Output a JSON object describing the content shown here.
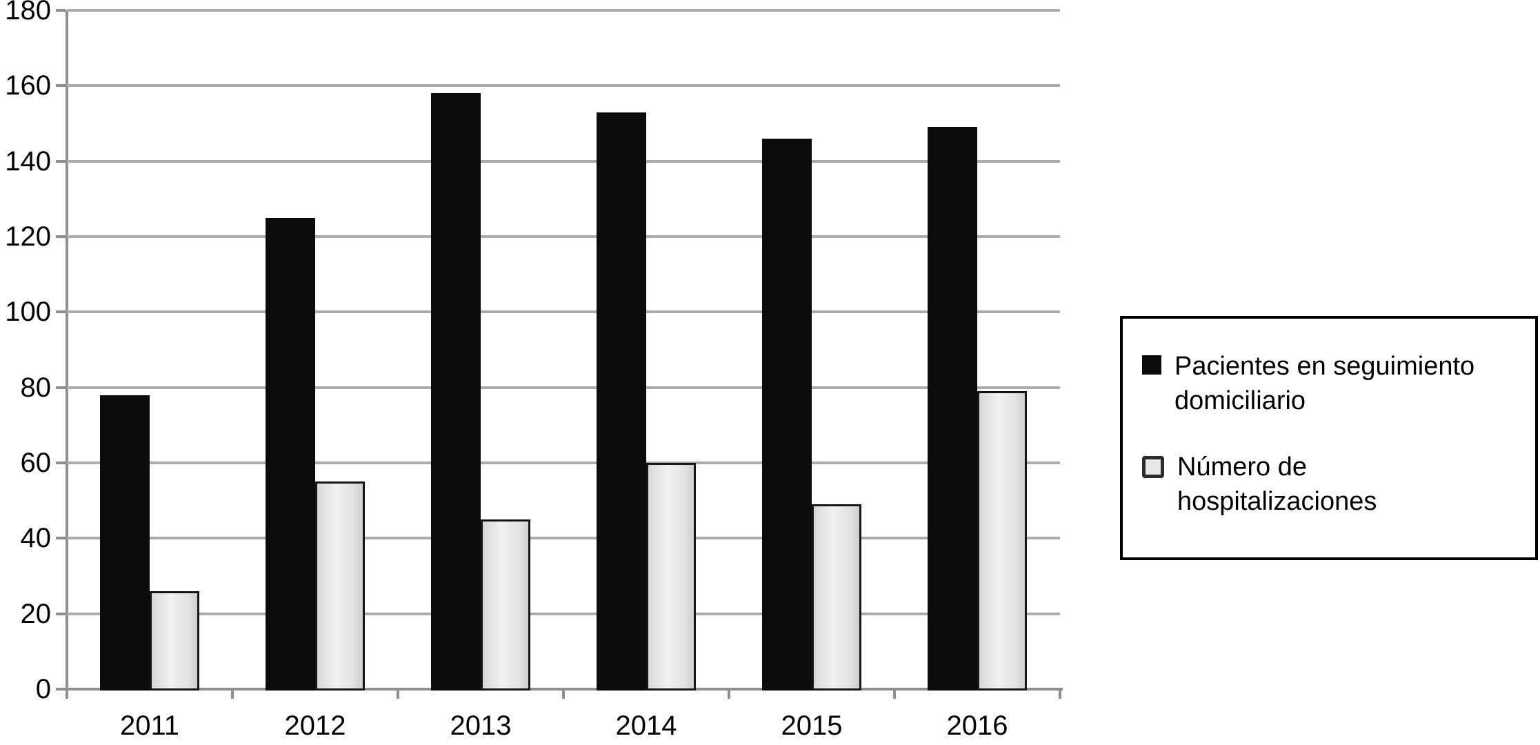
{
  "figure": {
    "background": "#ffffff"
  },
  "chart_data": {
    "type": "bar",
    "categories": [
      "2011",
      "2012",
      "2013",
      "2014",
      "2015",
      "2016"
    ],
    "series": [
      {
        "name": "Pacientes en seguimiento domiciliario",
        "color": "#0b0b0b",
        "values": [
          78,
          125,
          158,
          153,
          146,
          149
        ]
      },
      {
        "name": "Número de hospitalizaciones",
        "color": "#e4e4e4",
        "values": [
          26,
          55,
          45,
          60,
          49,
          79
        ]
      }
    ],
    "title": "",
    "xlabel": "",
    "ylabel": "",
    "ylim": [
      0,
      180
    ],
    "ytick_step": 20,
    "grid": "horizontal",
    "legend_position": "right"
  },
  "y_axis": {
    "tick_labels": [
      "0",
      "20",
      "40",
      "60",
      "80",
      "100",
      "120",
      "140",
      "160",
      "180"
    ]
  },
  "legend": {
    "items": [
      {
        "label": "Pacientes en seguimiento domiciliario",
        "marker": "black-square"
      },
      {
        "label": "Número de hospitalizaciones",
        "marker": "gray-square"
      }
    ]
  },
  "colors": {
    "gridline": "#ababab",
    "axis": "#8f8f8f",
    "bar_black": "#0b0b0b",
    "bar_gray_fill": "#e4e4e4",
    "bar_gray_border": "#161616",
    "legend_border": "#000000"
  }
}
